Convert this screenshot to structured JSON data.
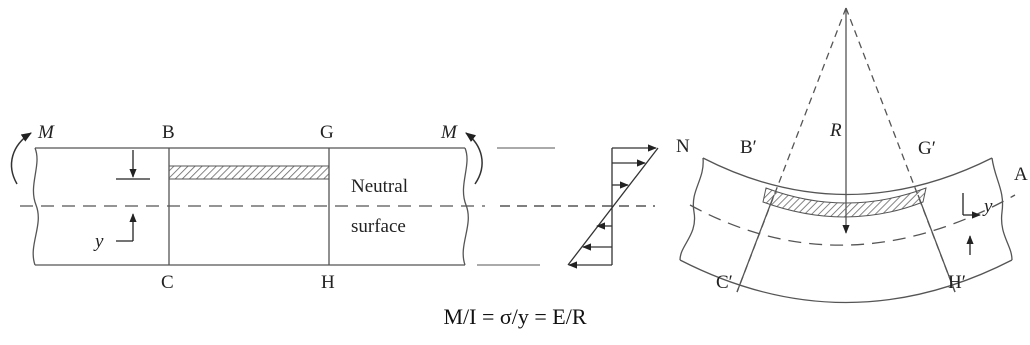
{
  "beam": {
    "moment_left": "M",
    "moment_right": "M",
    "label_B": "B",
    "label_G": "G",
    "label_C": "C",
    "label_H": "H",
    "neutral_line1": "Neutral",
    "neutral_line2": "surface",
    "y_label": "y"
  },
  "bent": {
    "label_N": "N",
    "label_Bp": "B′",
    "label_Gp": "G′",
    "label_R": "R",
    "label_Cp": "C′",
    "label_Hp": "H′",
    "label_A": "A",
    "y_label": "y"
  },
  "formula": "M/I = σ/y = E/R",
  "colors": {
    "line": "#555555",
    "text": "#222222",
    "hatch": "#666666"
  }
}
